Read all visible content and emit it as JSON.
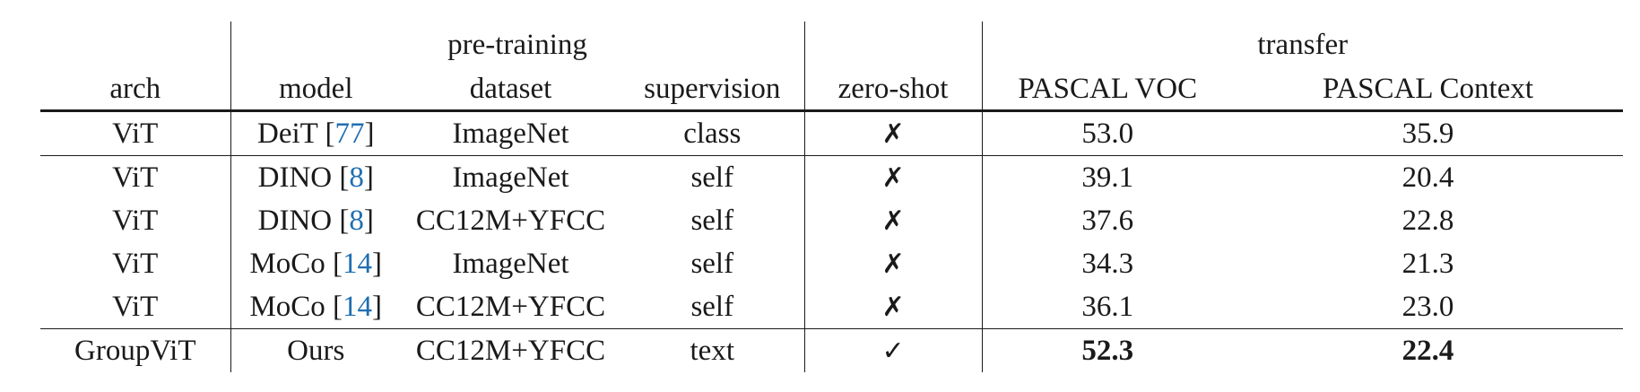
{
  "header": {
    "groups": {
      "pre_training": "pre-training",
      "transfer": "transfer"
    },
    "columns": [
      "arch",
      "model",
      "dataset",
      "supervision",
      "zero-shot",
      "PASCAL VOC",
      "PASCAL Context"
    ]
  },
  "rows": [
    {
      "arch": "ViT",
      "model": "DeiT",
      "cite": "77",
      "dataset": "ImageNet",
      "supervision": "class",
      "zero_shot": "✗",
      "voc": "53.0",
      "context": "35.9"
    },
    {
      "arch": "ViT",
      "model": "DINO",
      "cite": "8",
      "dataset": "ImageNet",
      "supervision": "self",
      "zero_shot": "✗",
      "voc": "39.1",
      "context": "20.4"
    },
    {
      "arch": "ViT",
      "model": "DINO",
      "cite": "8",
      "dataset": "CC12M+YFCC",
      "supervision": "self",
      "zero_shot": "✗",
      "voc": "37.6",
      "context": "22.8"
    },
    {
      "arch": "ViT",
      "model": "MoCo",
      "cite": "14",
      "dataset": "ImageNet",
      "supervision": "self",
      "zero_shot": "✗",
      "voc": "34.3",
      "context": "21.3"
    },
    {
      "arch": "ViT",
      "model": "MoCo",
      "cite": "14",
      "dataset": "CC12M+YFCC",
      "supervision": "self",
      "zero_shot": "✗",
      "voc": "36.1",
      "context": "23.0"
    },
    {
      "arch": "GroupViT",
      "model": "Ours",
      "cite": "",
      "dataset": "CC12M+YFCC",
      "supervision": "text",
      "zero_shot": "✓",
      "voc": "52.3",
      "context": "22.4"
    }
  ],
  "colors": {
    "citation": "#1f6fb2",
    "text": "#1a1a1a"
  }
}
